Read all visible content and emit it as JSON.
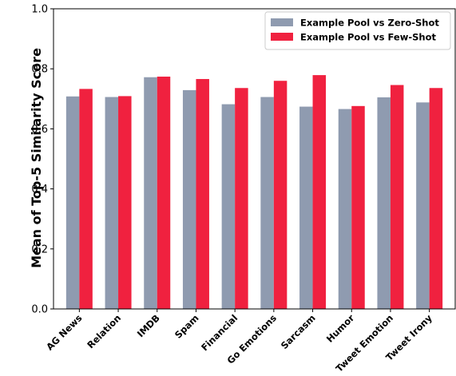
{
  "chart_data": {
    "type": "bar",
    "title": "",
    "xlabel": "",
    "ylabel": "Mean of Top-5 Similarity Score",
    "ylim": [
      0.0,
      1.0
    ],
    "yticks": [
      0.0,
      0.2,
      0.4,
      0.6,
      0.8,
      1.0
    ],
    "ytick_labels": [
      "0.0",
      "0.2",
      "0.4",
      "0.6",
      "0.8",
      "1.0"
    ],
    "grid": false,
    "legend_position": "top-right",
    "categories": [
      "AG News",
      "Relation",
      "IMDB",
      "Spam",
      "Financial",
      "Go Emotions",
      "Sarcasm",
      "Humor",
      "Tweet Emotion",
      "Tweet Irony"
    ],
    "series": [
      {
        "name": "Example Pool vs Zero-Shot",
        "color": "#8f9bb0",
        "values": [
          0.708,
          0.706,
          0.772,
          0.729,
          0.682,
          0.706,
          0.674,
          0.666,
          0.705,
          0.688
        ]
      },
      {
        "name": "Example Pool vs Few-Shot",
        "color": "#f0213f",
        "values": [
          0.733,
          0.709,
          0.774,
          0.766,
          0.736,
          0.76,
          0.779,
          0.676,
          0.746,
          0.736
        ]
      }
    ]
  }
}
